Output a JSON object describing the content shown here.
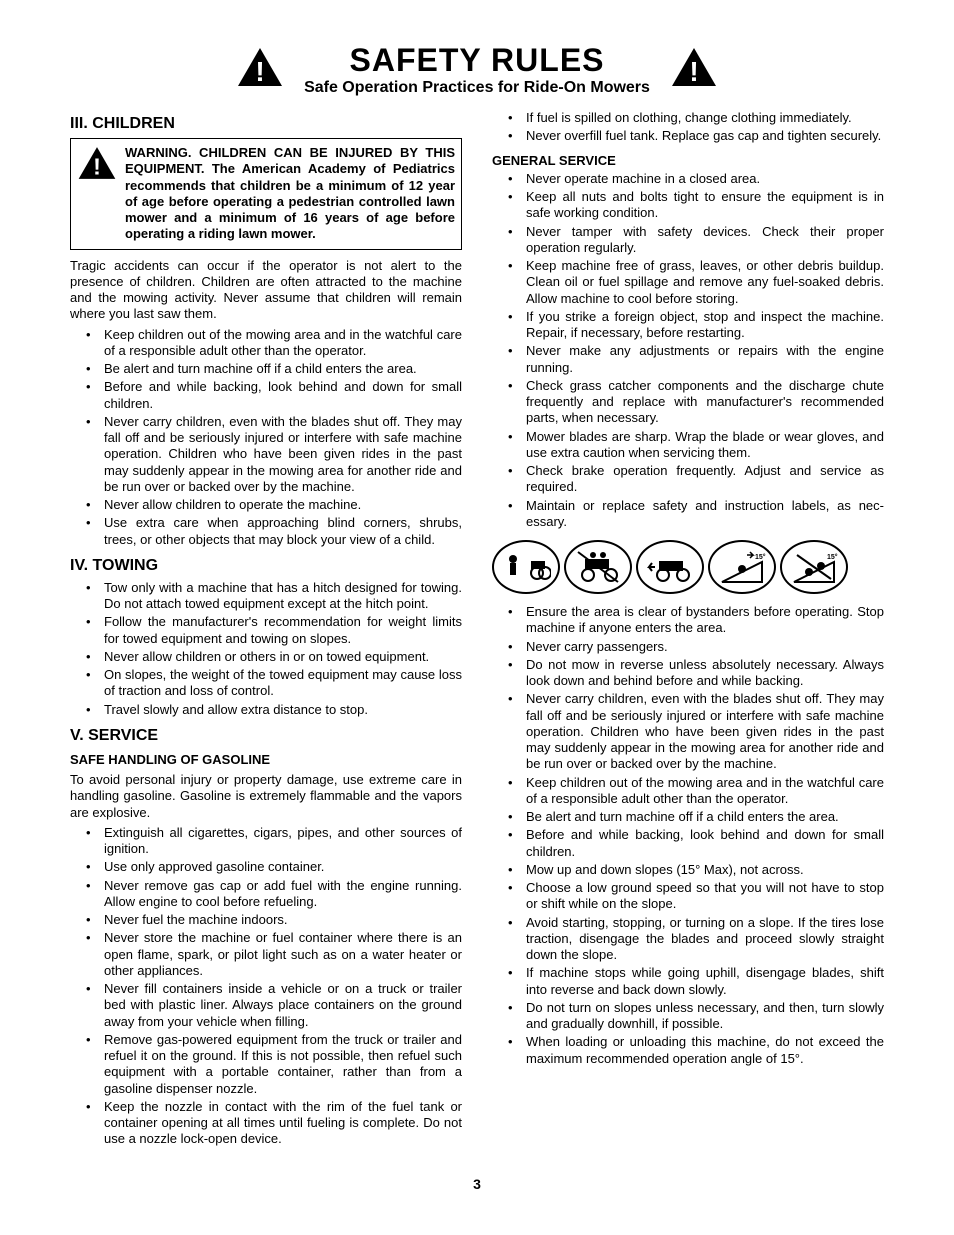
{
  "header": {
    "title": "SAFETY RULES",
    "subtitle": "Safe Operation Practices for Ride-On Mowers"
  },
  "left": {
    "s1": {
      "heading": "III. CHILDREN",
      "warning": "WARNING. CHILDREN CAN BE INJURED BY THIS EQUIPMENT.  The American Academy of Pediatrics recommends that children be a minimum of 12 year of age before operating a pedestrian controlled lawn mower and a minimum of 16 years of age before operating a riding lawn mower.",
      "para": "Tragic accidents can occur if the operator is not alert to the presence of children.  Children are often attracted to the ma­chine and the mowing activity.  Never assume that children will remain where you last saw them.",
      "items": [
        "Keep children out of the mowing area and in the watchful care of a responsible adult other than the operator.",
        "Be alert and turn machine off if a child enters the area.",
        "Before and while backing, look behind and down for small children.",
        "Never carry children, even with the blades shut off.  They may fall off and be seriously injured or interfere with safe machine operation. Children who have been given rides in the past may suddenly appear in the mowing area for another ride and be run over or backed over by the machine.",
        "Never allow children to operate the machine.",
        "Use extra care when approaching blind corners, shrubs, trees, or other objects that may block your view of a child."
      ]
    },
    "s2": {
      "heading": "IV. TOWING",
      "items": [
        "Tow only with a machine that has a hitch designed for towing. Do not attach towed equipment except at the hitch point.",
        "Follow the manufacturer's recommendation for weight limits for towed equipment and towing on slopes.",
        "Never allow children or others in or on towed equipment.",
        "On slopes, the weight of the towed equipment may cause loss of traction and loss of control.",
        "Travel slowly and allow extra distance to stop."
      ]
    },
    "s3": {
      "heading": "V. SERVICE",
      "sub": "SAFE HANDLING OF GASOLINE",
      "para": "To avoid personal injury or property damage, use extreme care in handling gasoline. Gasoline is extremely flammable and the vapors are explosive.",
      "items": [
        "Extinguish all cigarettes, cigars, pipes, and other sources of ignition.",
        "Use only approved gasoline container.",
        "Never remove gas cap or add fuel with the engine running. Allow engine to cool before refueling.",
        "Never fuel the machine indoors.",
        "Never store the machine or fuel container where there is an open flame, spark, or pilot light such as on a water heater or other appliances.",
        "Never fill containers inside a vehicle or on a truck or trailer bed with plastic liner. Always place containers on the ground away from your vehicle when filling.",
        "Remove gas-powered equipment from the truck or trailer and refuel it on the ground. If this is not possible, then refuel such equipment with a portable container, rather than from a gasoline dispenser nozzle.",
        "Keep the nozzle in contact with the rim of the fuel tank or container opening at all times until fueling is complete. Do not use a nozzle lock-open device."
      ]
    }
  },
  "right": {
    "top_items": [
      "If fuel is spilled on clothing, change clothing immediately.",
      "Never overfill fuel tank. Replace gas cap and tighten securely."
    ],
    "gs": {
      "heading": "GENERAL SERVICE",
      "items": [
        "Never operate machine in a closed area.",
        "Keep all nuts and bolts tight to ensure the equipment is in safe working condition.",
        "Never tamper with safety devices. Check their proper operation regularly.",
        "Keep machine free of grass, leaves, or other debris build­up.  Clean oil or fuel spillage and remove any fuel-soaked debris.  Allow machine to cool before storing.",
        "If you strike a foreign object, stop and inspect the machine. Repair, if necessary, before restarting.",
        "Never make any adjustments or repairs with the engine running.",
        "Check grass catcher components and the discharge chute frequently and replace with manufacturer's recommended parts, when necessary.",
        "Mower blades are sharp.  Wrap the blade or wear gloves, and use extra caution when servicing them.",
        "Check brake operation frequently.  Adjust and service as required.",
        "Maintain or replace safety and instruction labels, as nec­essary."
      ]
    },
    "bottom_items": [
      "Ensure the area is clear of bystanders before operating. Stop machine if anyone enters the area.",
      "Never carry passengers.",
      "Do not mow in reverse unless absolutely necessary. Always look down and behind before and while backing.",
      "Never carry children, even with the blades shut off.  They may fall off and be seriously injured or interfere with safe machine operation. Children who have been given rides in the past may suddenly appear in the mowing area for another ride and be run over or backed over by the machine.",
      "Keep children out of the mowing area and in the watchful care of a responsible adult other than the operator.",
      "Be alert and turn machine off if a child enters the area.",
      "Before and while backing, look behind and down for small children.",
      "Mow up and down slopes (15° Max), not across.",
      "Choose a low ground speed so that you will not have to stop or shift while on the slope.",
      "Avoid starting, stopping, or turning on a slope.  If the tires lose traction,  disengage the blades and proceed slowly straight down the slope.",
      "If machine stops while going uphill, disengage blades, shift into reverse and back down slowly.",
      "Do not turn on slopes unless necessary, and then, turn slowly and gradually downhill, if possible.",
      "When loading or unloading this machine, do not exceed the maximum recommended operation angle of 15°."
    ]
  },
  "page_number": "3"
}
